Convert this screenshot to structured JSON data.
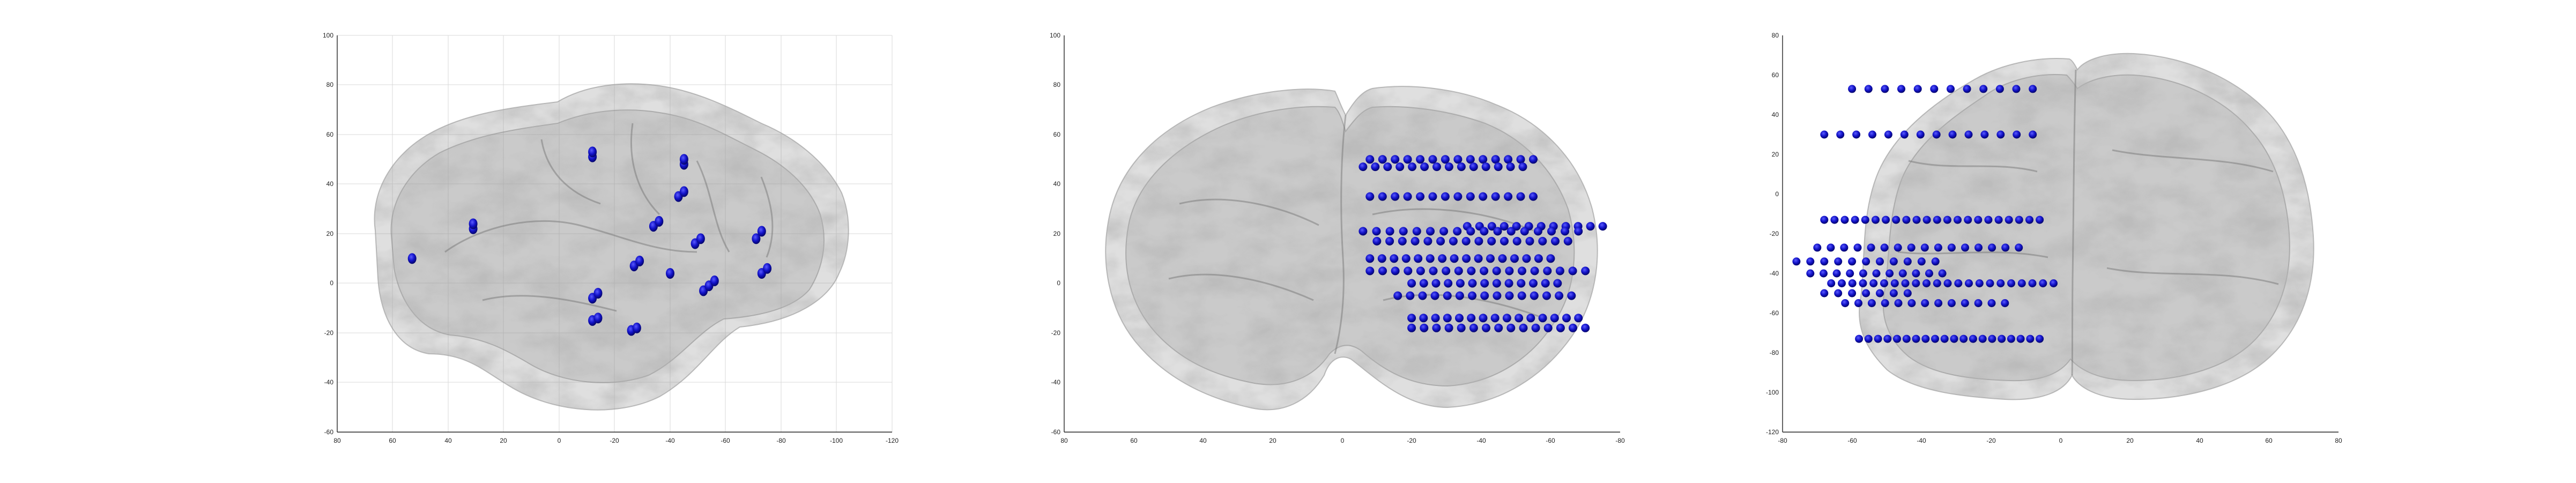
{
  "figure": {
    "accent_color": "#1010c8",
    "brain_color": "#8c8c8c"
  },
  "chart_data": [
    {
      "type": "scatter",
      "view": "sagittal",
      "title": "",
      "xlabel": "",
      "ylabel": "",
      "grid": true,
      "xlim": [
        80,
        -120
      ],
      "ylim": [
        -60,
        100
      ],
      "x_ticks": [
        "80",
        "60",
        "40",
        "20",
        "0",
        "-20",
        "-40",
        "-60",
        "-80",
        "-100",
        "-120"
      ],
      "y_ticks": [
        "-60",
        "-40",
        "-20",
        "0",
        "20",
        "40",
        "60",
        "80",
        "100"
      ],
      "series": [
        {
          "points": [
            [
              53,
              10
            ],
            [
              31,
              22
            ],
            [
              31,
              24
            ],
            [
              -12,
              51
            ],
            [
              -12,
              53
            ],
            [
              -45,
              48
            ],
            [
              -45,
              50
            ],
            [
              -43,
              35
            ],
            [
              -45,
              37
            ],
            [
              -34,
              23
            ],
            [
              -36,
              25
            ],
            [
              -27,
              7
            ],
            [
              -29,
              9
            ],
            [
              -12,
              -6
            ],
            [
              -14,
              -4
            ],
            [
              -40,
              4
            ],
            [
              -49,
              16
            ],
            [
              -51,
              18
            ],
            [
              -71,
              18
            ],
            [
              -73,
              21
            ],
            [
              -52,
              -3
            ],
            [
              -54,
              -1
            ],
            [
              -56,
              1
            ],
            [
              -73,
              4
            ],
            [
              -75,
              6
            ],
            [
              -12,
              -15
            ],
            [
              -14,
              -14
            ],
            [
              -26,
              -19
            ],
            [
              -28,
              -18
            ]
          ]
        }
      ]
    },
    {
      "type": "scatter",
      "view": "coronal",
      "title": "",
      "xlabel": "",
      "ylabel": "",
      "grid": false,
      "xlim": [
        80,
        -80
      ],
      "ylim": [
        -60,
        100
      ],
      "x_ticks": [
        "80",
        "60",
        "40",
        "20",
        "0",
        "-20",
        "-40",
        "-60",
        "-80"
      ],
      "y_ticks": [
        "-60",
        "-40",
        "-20",
        "0",
        "20",
        "40",
        "60",
        "80",
        "100"
      ],
      "series": [
        {
          "rows": [
            {
              "y": 50,
              "x_from": -8,
              "x_to": -55,
              "n": 14
            },
            {
              "y": 47,
              "x_from": -6,
              "x_to": -52,
              "n": 14
            },
            {
              "y": 35,
              "x_from": -8,
              "x_to": -55,
              "n": 14
            },
            {
              "y": 23,
              "x_from": -36,
              "x_to": -75,
              "n": 12
            },
            {
              "y": 21,
              "x_from": -6,
              "x_to": -68,
              "n": 17
            },
            {
              "y": 17,
              "x_from": -10,
              "x_to": -65,
              "n": 16
            },
            {
              "y": 10,
              "x_from": -8,
              "x_to": -60,
              "n": 16
            },
            {
              "y": 5,
              "x_from": -8,
              "x_to": -70,
              "n": 18
            },
            {
              "y": 0,
              "x_from": -20,
              "x_to": -62,
              "n": 13
            },
            {
              "y": -5,
              "x_from": -16,
              "x_to": -66,
              "n": 15
            },
            {
              "y": -14,
              "x_from": -20,
              "x_to": -68,
              "n": 15
            },
            {
              "y": -18,
              "x_from": -20,
              "x_to": -70,
              "n": 15
            }
          ]
        }
      ]
    },
    {
      "type": "scatter",
      "view": "axial",
      "title": "",
      "xlabel": "",
      "ylabel": "",
      "grid": false,
      "xlim": [
        -80,
        80
      ],
      "ylim": [
        -120,
        80
      ],
      "x_ticks": [
        "-80",
        "-60",
        "-40",
        "-20",
        "0",
        "20",
        "40",
        "60",
        "80"
      ],
      "y_ticks": [
        "-120",
        "-100",
        "-80",
        "-60",
        "-40",
        "-20",
        "0",
        "20",
        "40",
        "60",
        "80"
      ],
      "series": [
        {
          "rows": [
            {
              "y": 53,
              "x_from": -60,
              "x_to": -8,
              "n": 12
            },
            {
              "y": 30,
              "x_from": -68,
              "x_to": -8,
              "n": 14
            },
            {
              "y": -13,
              "x_from": -68,
              "x_to": -6,
              "n": 22
            },
            {
              "y": -27,
              "x_from": -70,
              "x_to": -12,
              "n": 16
            },
            {
              "y": -34,
              "x_from": -76,
              "x_to": -36,
              "n": 11
            },
            {
              "y": -40,
              "x_from": -72,
              "x_to": -34,
              "n": 11
            },
            {
              "y": -45,
              "x_from": -66,
              "x_to": -2,
              "n": 22
            },
            {
              "y": -50,
              "x_from": -68,
              "x_to": -44,
              "n": 7
            },
            {
              "y": -55,
              "x_from": -62,
              "x_to": -16,
              "n": 13
            },
            {
              "y": -73,
              "x_from": -58,
              "x_to": -6,
              "n": 20
            }
          ]
        }
      ]
    }
  ]
}
